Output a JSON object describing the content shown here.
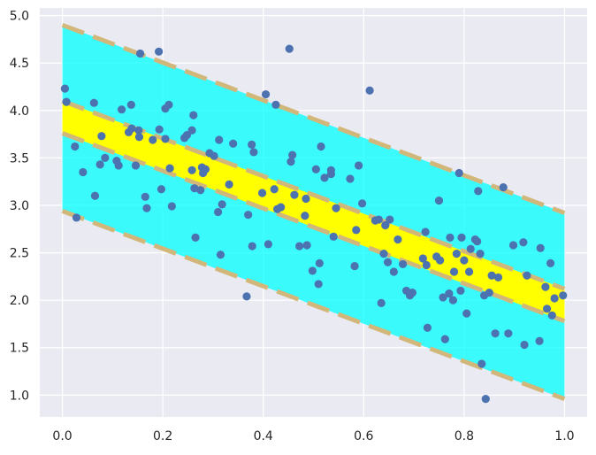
{
  "chart_data": {
    "type": "scatter",
    "title": "",
    "xlabel": "",
    "ylabel": "",
    "xlim": [
      -0.045,
      1.045
    ],
    "ylim": [
      0.77,
      5.08
    ],
    "grid": true,
    "xticks": [
      "0.0",
      "0.2",
      "0.4",
      "0.6",
      "0.8",
      "1.0"
    ],
    "yticks": [
      "1.0",
      "1.5",
      "2.0",
      "2.5",
      "3.0",
      "3.5",
      "4.0",
      "4.5",
      "5.0"
    ],
    "outer_band": {
      "x": [
        0.0,
        1.0
      ],
      "upper": [
        4.9,
        2.92
      ],
      "lower": [
        2.94,
        0.96
      ]
    },
    "inner_band": {
      "x": [
        0.0,
        1.0
      ],
      "upper": [
        4.1,
        2.12
      ],
      "lower": [
        3.76,
        1.78
      ]
    },
    "points": [
      [
        0.005,
        4.23
      ],
      [
        0.008,
        4.09
      ],
      [
        0.025,
        3.62
      ],
      [
        0.028,
        2.87
      ],
      [
        0.041,
        3.35
      ],
      [
        0.063,
        4.08
      ],
      [
        0.065,
        3.1
      ],
      [
        0.075,
        3.43
      ],
      [
        0.078,
        3.73
      ],
      [
        0.085,
        3.5
      ],
      [
        0.108,
        3.47
      ],
      [
        0.112,
        3.42
      ],
      [
        0.118,
        4.01
      ],
      [
        0.132,
        3.77
      ],
      [
        0.137,
        4.06
      ],
      [
        0.138,
        3.81
      ],
      [
        0.146,
        3.42
      ],
      [
        0.152,
        3.79
      ],
      [
        0.153,
        3.72
      ],
      [
        0.155,
        4.6
      ],
      [
        0.165,
        3.09
      ],
      [
        0.168,
        2.97
      ],
      [
        0.18,
        3.69
      ],
      [
        0.192,
        4.62
      ],
      [
        0.193,
        3.8
      ],
      [
        0.197,
        3.17
      ],
      [
        0.205,
        3.7
      ],
      [
        0.205,
        4.02
      ],
      [
        0.212,
        4.06
      ],
      [
        0.214,
        3.39
      ],
      [
        0.218,
        2.99
      ],
      [
        0.243,
        3.71
      ],
      [
        0.248,
        3.74
      ],
      [
        0.258,
        3.79
      ],
      [
        0.258,
        3.37
      ],
      [
        0.261,
        3.95
      ],
      [
        0.263,
        3.18
      ],
      [
        0.265,
        2.66
      ],
      [
        0.275,
        3.16
      ],
      [
        0.278,
        3.4
      ],
      [
        0.28,
        3.34
      ],
      [
        0.285,
        3.38
      ],
      [
        0.293,
        3.55
      ],
      [
        0.302,
        3.52
      ],
      [
        0.31,
        2.93
      ],
      [
        0.312,
        3.69
      ],
      [
        0.315,
        2.48
      ],
      [
        0.318,
        3.01
      ],
      [
        0.332,
        3.22
      ],
      [
        0.34,
        3.65
      ],
      [
        0.367,
        2.04
      ],
      [
        0.37,
        2.9
      ],
      [
        0.377,
        3.64
      ],
      [
        0.381,
        3.56
      ],
      [
        0.378,
        2.57
      ],
      [
        0.398,
        3.13
      ],
      [
        0.405,
        4.17
      ],
      [
        0.41,
        2.59
      ],
      [
        0.422,
        3.17
      ],
      [
        0.425,
        4.06
      ],
      [
        0.428,
        2.96
      ],
      [
        0.435,
        2.98
      ],
      [
        0.452,
        4.65
      ],
      [
        0.455,
        3.46
      ],
      [
        0.458,
        3.53
      ],
      [
        0.462,
        3.11
      ],
      [
        0.472,
        2.57
      ],
      [
        0.483,
        2.89
      ],
      [
        0.485,
        3.07
      ],
      [
        0.487,
        2.58
      ],
      [
        0.498,
        2.31
      ],
      [
        0.505,
        3.38
      ],
      [
        0.51,
        2.17
      ],
      [
        0.512,
        2.39
      ],
      [
        0.515,
        3.62
      ],
      [
        0.522,
        3.29
      ],
      [
        0.535,
        3.33
      ],
      [
        0.535,
        3.37
      ],
      [
        0.54,
        2.67
      ],
      [
        0.545,
        2.97
      ],
      [
        0.573,
        3.28
      ],
      [
        0.582,
        2.36
      ],
      [
        0.585,
        2.74
      ],
      [
        0.59,
        3.42
      ],
      [
        0.597,
        3.02
      ],
      [
        0.612,
        4.21
      ],
      [
        0.623,
        2.84
      ],
      [
        0.63,
        2.85
      ],
      [
        0.635,
        1.97
      ],
      [
        0.64,
        2.49
      ],
      [
        0.643,
        2.79
      ],
      [
        0.648,
        2.4
      ],
      [
        0.652,
        2.85
      ],
      [
        0.66,
        2.3
      ],
      [
        0.668,
        2.64
      ],
      [
        0.678,
        2.38
      ],
      [
        0.685,
        2.1
      ],
      [
        0.692,
        2.05
      ],
      [
        0.697,
        2.08
      ],
      [
        0.718,
        2.44
      ],
      [
        0.723,
        2.72
      ],
      [
        0.725,
        2.37
      ],
      [
        0.727,
        1.71
      ],
      [
        0.745,
        2.46
      ],
      [
        0.75,
        3.05
      ],
      [
        0.752,
        2.42
      ],
      [
        0.758,
        2.03
      ],
      [
        0.762,
        1.59
      ],
      [
        0.77,
        2.07
      ],
      [
        0.772,
        2.66
      ],
      [
        0.778,
        2.0
      ],
      [
        0.78,
        2.3
      ],
      [
        0.785,
        2.49
      ],
      [
        0.79,
        3.34
      ],
      [
        0.793,
        2.1
      ],
      [
        0.795,
        2.66
      ],
      [
        0.8,
        2.42
      ],
      [
        0.805,
        1.86
      ],
      [
        0.81,
        2.3
      ],
      [
        0.813,
        2.54
      ],
      [
        0.822,
        2.64
      ],
      [
        0.826,
        2.62
      ],
      [
        0.828,
        3.15
      ],
      [
        0.832,
        2.49
      ],
      [
        0.835,
        1.33
      ],
      [
        0.84,
        2.05
      ],
      [
        0.843,
        0.96
      ],
      [
        0.85,
        2.08
      ],
      [
        0.855,
        2.26
      ],
      [
        0.862,
        1.65
      ],
      [
        0.868,
        2.24
      ],
      [
        0.878,
        3.19
      ],
      [
        0.888,
        1.65
      ],
      [
        0.898,
        2.58
      ],
      [
        0.918,
        2.61
      ],
      [
        0.92,
        1.53
      ],
      [
        0.925,
        2.26
      ],
      [
        0.95,
        1.57
      ],
      [
        0.952,
        2.55
      ],
      [
        0.962,
        2.14
      ],
      [
        0.965,
        1.91
      ],
      [
        0.972,
        2.39
      ],
      [
        0.975,
        1.84
      ],
      [
        0.98,
        2.02
      ],
      [
        0.997,
        2.05
      ]
    ]
  }
}
